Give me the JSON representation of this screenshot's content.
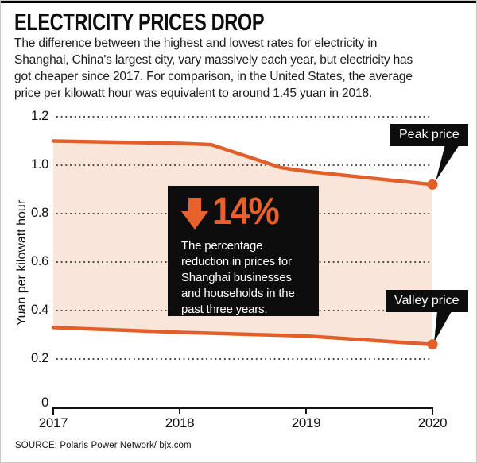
{
  "page": {
    "title": "ELECTRICITY PRICES DROP",
    "intro_lines": [
      "The difference between the highest and lowest rates for electricity in",
      "Shanghai, China's largest city, vary massively each year, but electricity has",
      "got cheaper since 2017. For comparison, in the United States, the average",
      "price per kilowatt hour was equivalent to around 1.45 yuan in 2018."
    ],
    "source": "SOURCE: Polaris Power Network/ bjx.com"
  },
  "chart_data": {
    "type": "area",
    "title": "ELECTRICITY PRICES DROP",
    "xlabel": "",
    "ylabel": "Yuan per kilowatt hour",
    "x_labels": [
      "2017",
      "2018",
      "2019",
      "2020"
    ],
    "xlim": [
      2017,
      2020
    ],
    "ylim": [
      0,
      1.2
    ],
    "yticks": [
      "1.2",
      "1.0",
      "0.8",
      "0.6",
      "0.4",
      "0.2",
      "0"
    ],
    "grid": "dotted horizontal",
    "series": [
      {
        "name": "Peak price",
        "points": [
          [
            2017,
            1.1
          ],
          [
            2018,
            1.09
          ],
          [
            2018.25,
            1.085
          ],
          [
            2018.8,
            0.99
          ],
          [
            2019,
            0.975
          ],
          [
            2020,
            0.92
          ]
        ]
      },
      {
        "name": "Valley price",
        "points": [
          [
            2017,
            0.33
          ],
          [
            2018,
            0.31
          ],
          [
            2019,
            0.295
          ],
          [
            2020,
            0.26
          ]
        ]
      }
    ],
    "annotation": {
      "arrow": "down-arrow-icon",
      "value": "14%",
      "lines": [
        "The percentage",
        "reduction in prices for",
        "Shanghai businesses",
        "and households in the",
        "past three years."
      ]
    },
    "colors": {
      "line": "#e25f2a",
      "fill": "#fae5da",
      "grid": "#4a4442",
      "label_bg": "#0d0d0d",
      "accent_text": "#e8612c"
    }
  }
}
